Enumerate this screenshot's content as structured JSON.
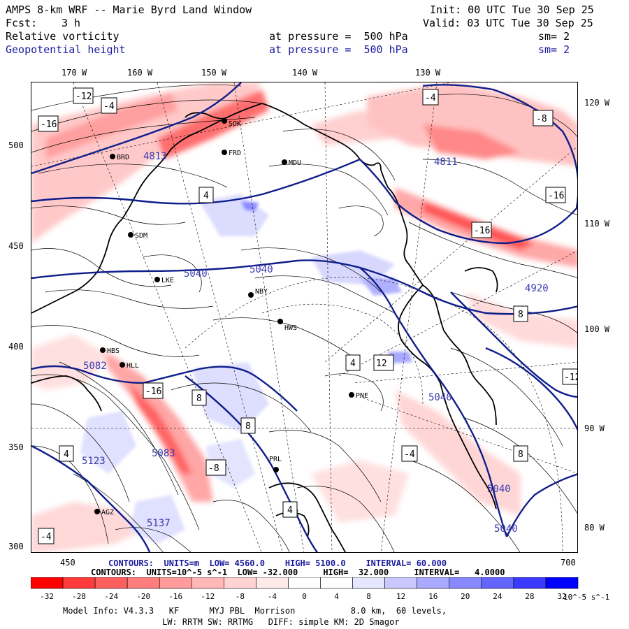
{
  "header": {
    "title": "AMPS 8-km WRF -- Marie Byrd Land Window",
    "init": "Init: 00 UTC Tue 30 Sep 25",
    "fcst_label": "Fcst:",
    "fcst_value": "3 h",
    "valid": "Valid: 03 UTC Tue 30 Sep 25",
    "field1": "Relative vorticity",
    "field1_level": "at pressure =  500 hPa",
    "field1_sm": "sm= 2",
    "field2": "Geopotential height",
    "field2_level": "at pressure =  500 hPa",
    "field2_sm": "sm= 2"
  },
  "axes": {
    "top_lon": [
      "170 W",
      "160 W",
      "150 W",
      "140 W",
      "130 W"
    ],
    "right_lat": [
      "120 W",
      "110 W",
      "100 W",
      "90 W",
      "80 W"
    ],
    "left_ticks": [
      "500",
      "450",
      "400",
      "350",
      "300"
    ],
    "bottom_ticks": [
      "450",
      "700"
    ]
  },
  "stations": [
    "BRD",
    "FRD",
    "MDU",
    "SDM",
    "LKE",
    "NBY",
    "HWS",
    "HBS",
    "HLL",
    "PNE",
    "PRL",
    "AGZ",
    "SOK"
  ],
  "contour_labels_blue": [
    "5040",
    "5040",
    "4920",
    "5082",
    "5123",
    "5083",
    "5137",
    "5040",
    "5040",
    "5040",
    "4813",
    "4811"
  ],
  "contour_labels_black": [
    "-12",
    "-16",
    "-4",
    "4",
    "8",
    "-8",
    "12"
  ],
  "footer": {
    "contours_blue": "CONTOURS:  UNITS=m  LOW= 4560.0    HIGH= 5100.0    INTERVAL= 60.000",
    "contours_black": "CONTOURS:  UNITS=10^-5 s^-1  LOW= -32.000     HIGH=  32.000     INTERVAL=   4.0000",
    "model_info": "Model Info: V4.3.3   KF      MYJ PBL  Morrison           8.0 km,  60 levels,",
    "model_info2": "LW: RRTM SW: RRTMG   DIFF: simple KM: 2D Smagor"
  },
  "colorbar": {
    "labels": [
      "-32",
      "-28",
      "-24",
      "-20",
      "-16",
      "-12",
      "-8",
      "-4",
      "0",
      "4",
      "8",
      "12",
      "16",
      "20",
      "24",
      "28",
      "32"
    ],
    "unit": "10^-5 s^-1",
    "colors": [
      "#ff0000",
      "#ff3b3b",
      "#ff5e5e",
      "#ff7d7d",
      "#ff9b9b",
      "#ffb7b7",
      "#ffd3d3",
      "#ffeaea",
      "#ffffff",
      "#ffffff",
      "#e6e6ff",
      "#c9c9ff",
      "#a9a9ff",
      "#8989ff",
      "#6464ff",
      "#3b3bff",
      "#0000ff"
    ]
  }
}
